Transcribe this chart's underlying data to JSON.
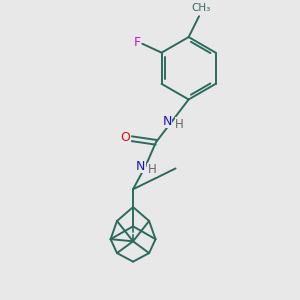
{
  "background_color": "#e8e8e8",
  "bond_color": "#2a6b5e",
  "N_color": "#1414cc",
  "O_color": "#cc1414",
  "F_color": "#cc14cc",
  "H_color": "#666666",
  "line_width": 1.4,
  "figsize": [
    3.0,
    3.0
  ],
  "dpi": 100,
  "xlim": [
    0,
    10
  ],
  "ylim": [
    0,
    10
  ]
}
